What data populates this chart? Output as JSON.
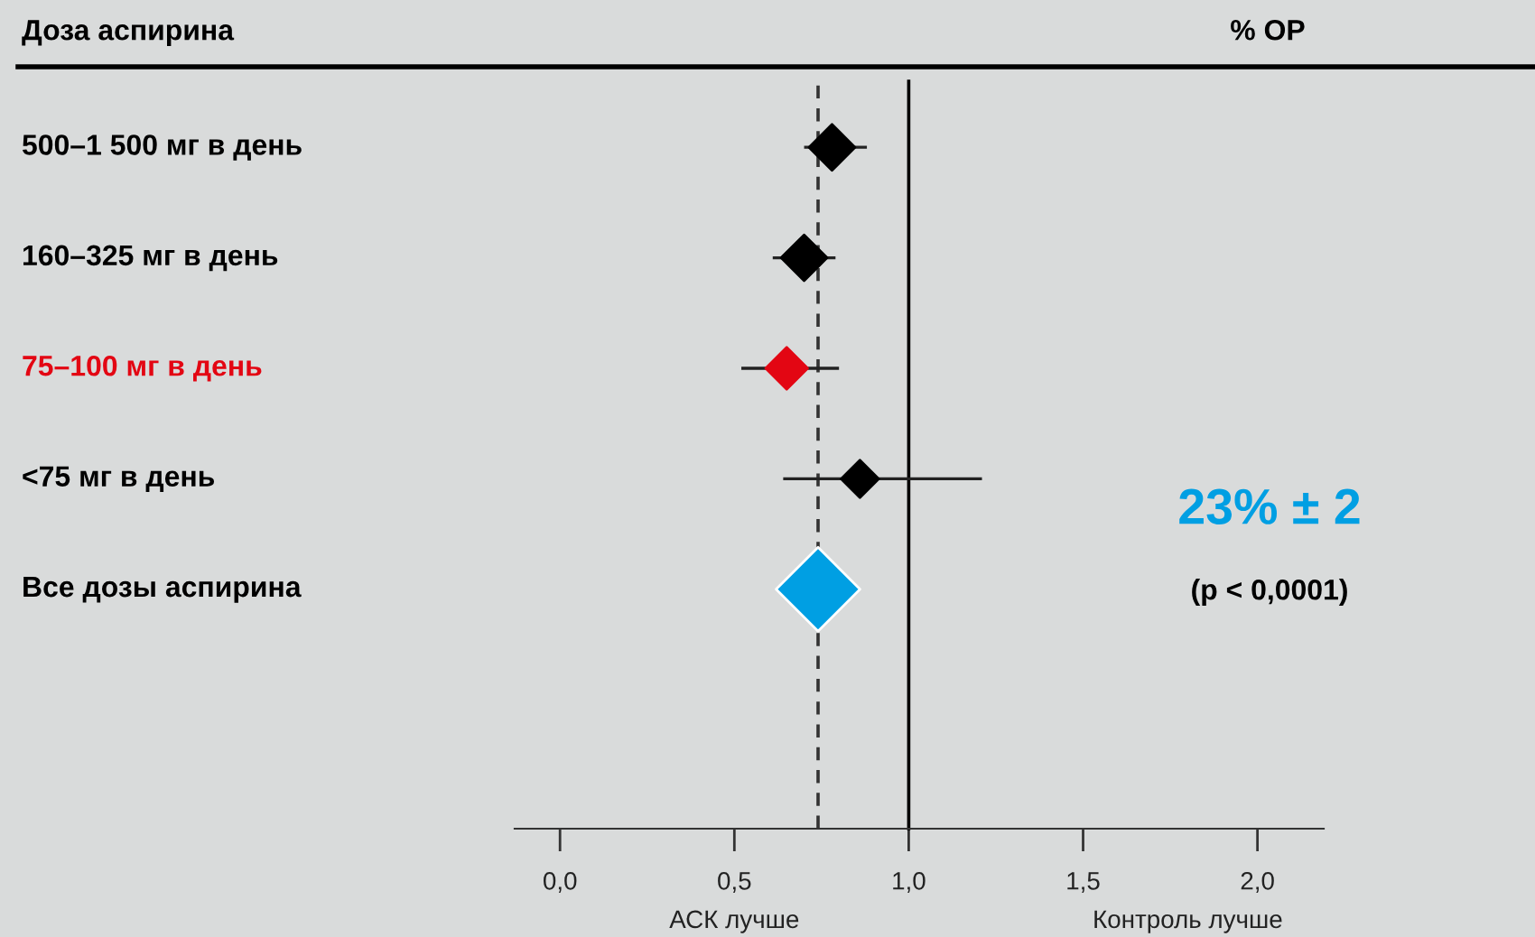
{
  "chart_data": {
    "type": "scatter",
    "orientation": "horizontal",
    "ylabel": "Доза аспирина",
    "categories": [
      "500–1 500 мг в день",
      "160–325 мг в день",
      "75–100 мг в день",
      "<75 мг в день",
      "Все дозы аспирина"
    ],
    "values": [
      0.78,
      0.7,
      0.65,
      0.86,
      0.74
    ],
    "errors": [
      [
        0.7,
        0.88
      ],
      [
        0.61,
        0.79
      ],
      [
        0.52,
        0.8
      ],
      [
        0.64,
        1.21
      ],
      null
    ],
    "colors": [
      "#000000",
      "#000000",
      "#e30613",
      "#000000",
      "#009fe3"
    ],
    "sizes": [
      0.3,
      0.3,
      0.25,
      0.2,
      1
    ],
    "marker": "diamond",
    "xlim": [
      -0.13,
      2.19
    ],
    "xticks": [
      {
        "value": 0.0,
        "label": "0,0"
      },
      {
        "value": 0.5,
        "label": "0,5"
      },
      {
        "value": 1.0,
        "label": "1,0"
      },
      {
        "value": 1.5,
        "label": "1,5"
      },
      {
        "value": 2.0,
        "label": "2,0"
      }
    ],
    "ref_lines": [
      {
        "axis": "x",
        "value": 1.0,
        "label": null,
        "color": "#000000",
        "line_style": "solid"
      },
      {
        "axis": "x",
        "value": 0.74,
        "label": null,
        "color": "#333333",
        "line_style": "dashed"
      }
    ],
    "annotations": [
      "% ОР",
      "23% ± 2",
      "(p < 0,0001)",
      "АСК лучше",
      "Контроль лучше"
    ],
    "grid": false,
    "legend": false
  }
}
